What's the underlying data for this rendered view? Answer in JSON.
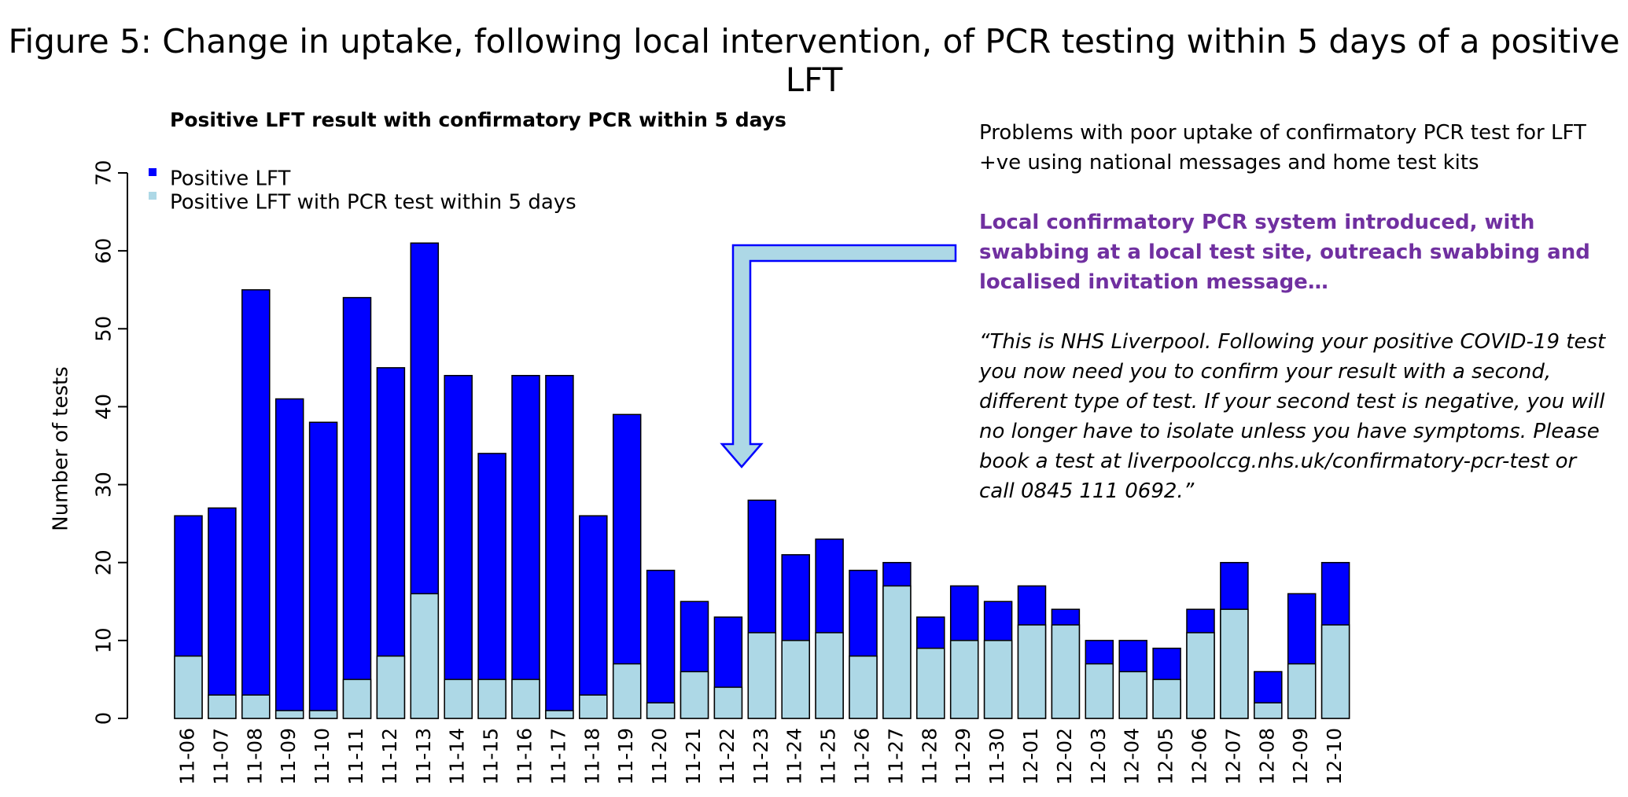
{
  "figure_title": "Figure 5: Change in uptake, following local intervention, of PCR testing within 5 days of a positive LFT",
  "annotations": {
    "problem": "Problems with poor uptake of confirmatory PCR test for LFT +ve using national messages and home test kits",
    "local_system": "Local confirmatory PCR system introduced, with swabbing at a local test site, outreach swabbing and localised invitation message…",
    "quote": "“This is NHS Liverpool.  Following your positive COVID-19 test you now need you to confirm your result with a second, different type of test. If your second test is negative, you will no longer have to isolate unless you have symptoms. Please book a test at liverpoolccg.nhs.uk/confirmatory-pcr-test or call 0845 111 0692.”"
  },
  "chart_data": {
    "type": "bar",
    "title": "Positive LFT result with confirmatory PCR within 5 days",
    "xlabel": "",
    "ylabel": "Number of tests",
    "ylim": [
      0,
      70
    ],
    "yticks": [
      0,
      10,
      20,
      30,
      40,
      50,
      60,
      70
    ],
    "grid": false,
    "legend_position": "top-left",
    "categories": [
      "11-06",
      "11-07",
      "11-08",
      "11-09",
      "11-10",
      "11-11",
      "11-12",
      "11-13",
      "11-14",
      "11-15",
      "11-16",
      "11-17",
      "11-18",
      "11-19",
      "11-20",
      "11-21",
      "11-22",
      "11-23",
      "11-24",
      "11-25",
      "11-26",
      "11-27",
      "11-28",
      "11-29",
      "11-30",
      "12-01",
      "12-02",
      "12-03",
      "12-04",
      "12-05",
      "12-06",
      "12-07",
      "12-08",
      "12-09",
      "12-10"
    ],
    "series": [
      {
        "name": "Positive LFT",
        "color": "#0000FF",
        "values": [
          26,
          27,
          55,
          41,
          38,
          54,
          45,
          61,
          44,
          34,
          44,
          44,
          26,
          39,
          19,
          15,
          13,
          28,
          21,
          23,
          19,
          20,
          13,
          17,
          15,
          17,
          14,
          10,
          10,
          9,
          14,
          20,
          6,
          16,
          20
        ]
      },
      {
        "name": "Positive LFT with PCR test within 5 days",
        "color": "#ADD8E6",
        "values": [
          8,
          3,
          3,
          1,
          1,
          5,
          8,
          16,
          5,
          5,
          5,
          1,
          3,
          7,
          2,
          6,
          4,
          11,
          10,
          11,
          8,
          17,
          9,
          10,
          10,
          12,
          12,
          7,
          6,
          5,
          11,
          14,
          2,
          7,
          12
        ]
      }
    ]
  }
}
